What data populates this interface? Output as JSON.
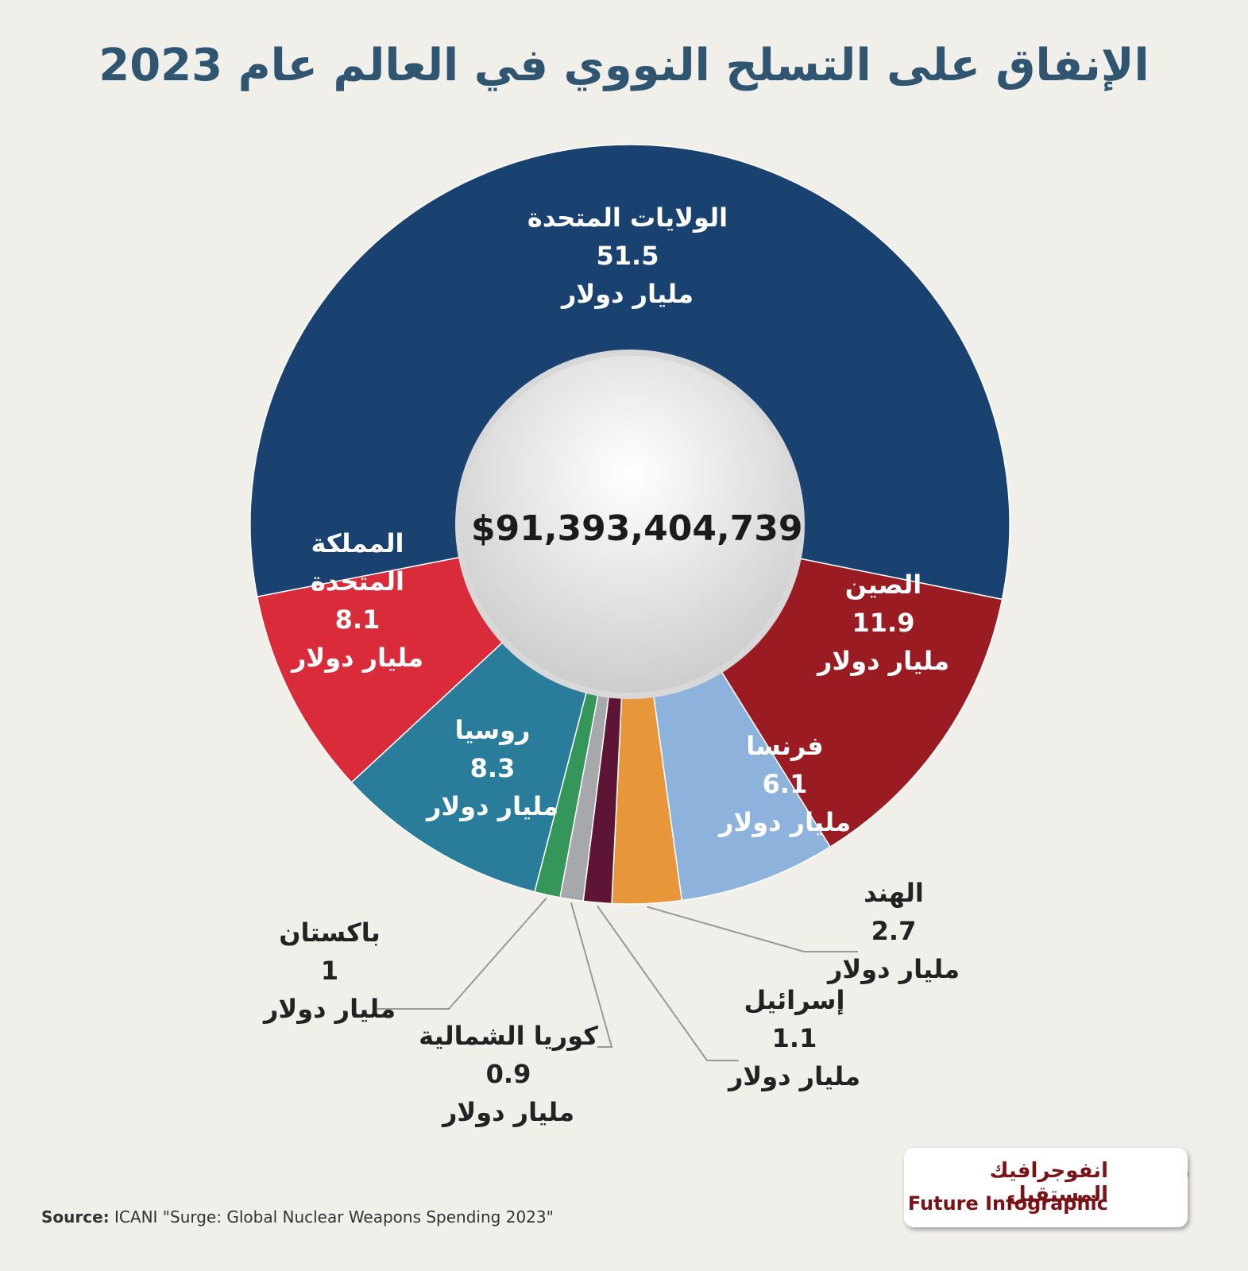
{
  "chart_data": {
    "type": "pie",
    "title": "الإنفاق على التسلح النووي في العالم عام 2023",
    "center_label": "$91,393,404,739",
    "unit": "مليار دولار",
    "categories": [
      "الولايات المتحدة",
      "الصين",
      "فرنسا",
      "الهند",
      "إسرائيل",
      "كوريا الشمالية",
      "باكستان",
      "روسيا",
      "المملكة المتحدة"
    ],
    "values": [
      51.5,
      11.9,
      6.1,
      2.7,
      1.1,
      0.9,
      1,
      8.3,
      8.1
    ],
    "colors": [
      "#1a4270",
      "#9b1b22",
      "#8db3dc",
      "#e8963a",
      "#5e1535",
      "#a7a8ab",
      "#35965a",
      "#2a7d9a",
      "#d92b3a"
    ],
    "source_label": "Source:",
    "source": "ICANI \"Surge: Global Nuclear Weapons Spending 2023\"",
    "logo_ar": "انفوجرافيك المستقبل",
    "logo_en": "Future Infographic"
  }
}
